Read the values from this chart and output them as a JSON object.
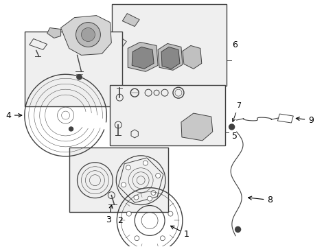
{
  "background_color": "#ffffff",
  "line_color": "#404040",
  "fig_width": 4.89,
  "fig_height": 3.6,
  "dpi": 100,
  "box_face": "#efefef",
  "box_edge": "#404040",
  "part_face": "#d0d0d0",
  "part_edge": "#404040"
}
